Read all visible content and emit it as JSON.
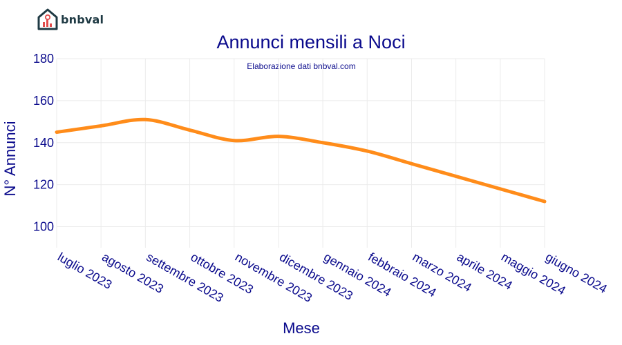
{
  "brand": {
    "name": "bnbval",
    "logo_icon": "house-chart-icon"
  },
  "chart_data": {
    "type": "line",
    "title": "Annunci mensili a Noci",
    "subtitle": "Elaborazione dati bnbval.com",
    "xlabel": "Mese",
    "ylabel": "N° Annunci",
    "categories": [
      "luglio 2023",
      "agosto 2023",
      "settembre 2023",
      "ottobre 2023",
      "novembre 2023",
      "dicembre 2023",
      "gennaio 2024",
      "febbraio 2024",
      "marzo 2024",
      "aprile 2024",
      "maggio 2024",
      "giugno 2024"
    ],
    "series": [
      {
        "values": [
          145,
          148,
          151,
          146,
          141,
          143,
          140,
          136,
          130,
          124,
          118,
          112
        ]
      }
    ],
    "ylim": [
      90,
      180
    ],
    "yticks": [
      100,
      120,
      140,
      160,
      180
    ],
    "grid": true,
    "colors": {
      "line": "#ff8c1a",
      "text": "#0a0a8c",
      "grid": "#ebebeb"
    }
  }
}
